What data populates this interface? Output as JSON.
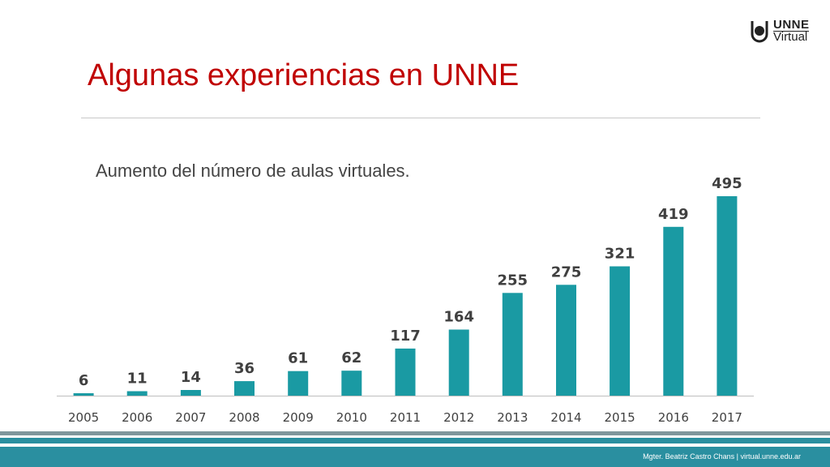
{
  "slide": {
    "title": "Algunas experiencias en UNNE",
    "subtitle": "Aumento del número de aulas virtuales.",
    "footer": "Mgter. Beatriz Castro Chans | virtual.unne.edu.ar"
  },
  "logo": {
    "line1": "UNNE",
    "line2": "Virtual"
  },
  "colors": {
    "title": "#c00000",
    "bar": "#1a9aa3",
    "band": "#2a8fa0"
  },
  "chart_data": {
    "type": "bar",
    "categories": [
      "2005",
      "2006",
      "2007",
      "2008",
      "2009",
      "2010",
      "2011",
      "2012",
      "2013",
      "2014",
      "2015",
      "2016",
      "2017"
    ],
    "values": [
      6,
      11,
      14,
      36,
      61,
      62,
      117,
      164,
      255,
      275,
      321,
      419,
      495
    ],
    "data_labels": true,
    "grid": false,
    "legend": "none"
  }
}
